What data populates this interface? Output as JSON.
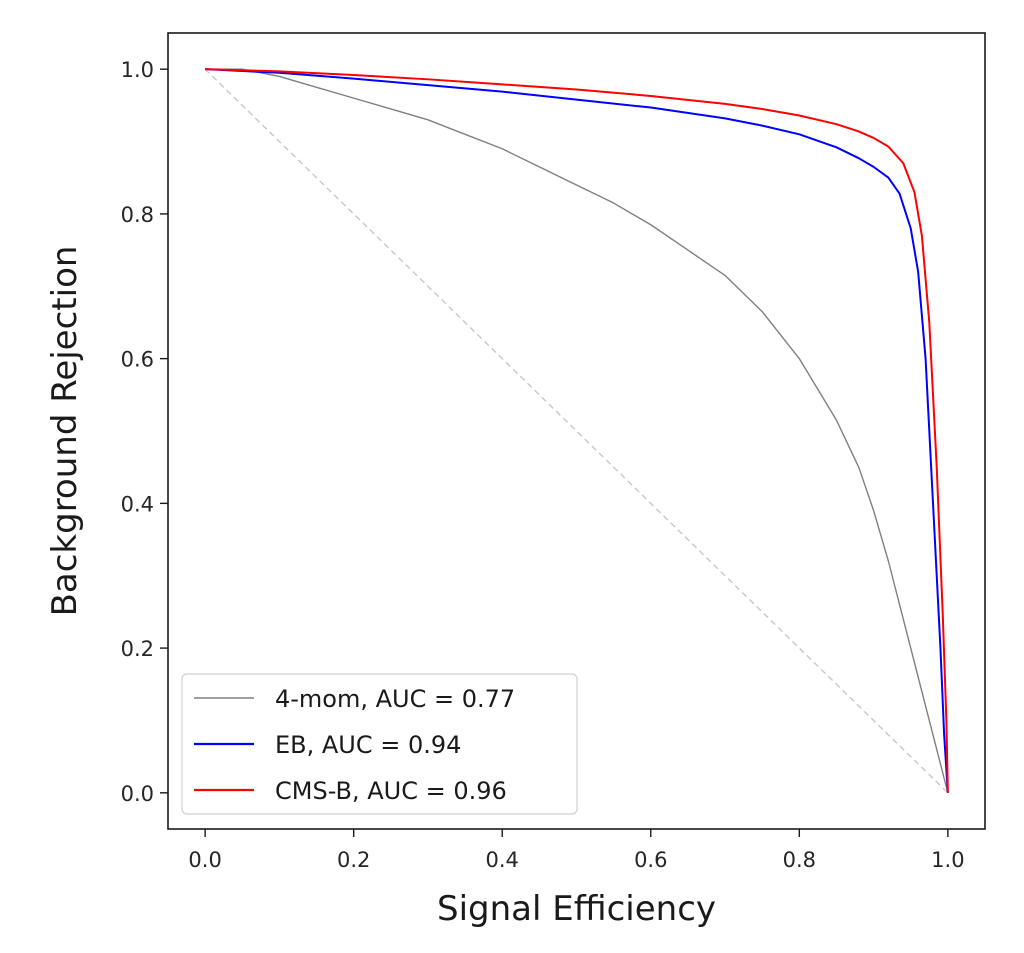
{
  "chart_data": {
    "type": "line",
    "title": "",
    "xlabel": "Signal Efficiency",
    "ylabel": "Background Rejection",
    "xlim": [
      -0.05,
      1.05
    ],
    "ylim": [
      -0.05,
      1.05
    ],
    "xticks": [
      "0.0",
      "0.2",
      "0.4",
      "0.6",
      "0.8",
      "1.0"
    ],
    "yticks": [
      "0.0",
      "0.2",
      "0.4",
      "0.6",
      "0.8",
      "1.0"
    ],
    "grid": false,
    "legend_position": "lower-left",
    "reference_line": {
      "style": "dashed",
      "color": "#c8c8c8",
      "x": [
        0,
        1
      ],
      "y": [
        1,
        0
      ]
    },
    "series": [
      {
        "name": "4-mom, AUC = 0.77",
        "color": "#808080",
        "x": [
          0,
          0.05,
          0.1,
          0.15,
          0.2,
          0.25,
          0.3,
          0.35,
          0.4,
          0.45,
          0.5,
          0.55,
          0.6,
          0.65,
          0.7,
          0.75,
          0.8,
          0.85,
          0.88,
          0.9,
          0.92,
          0.94,
          0.96,
          0.98,
          0.99,
          1.0
        ],
        "y": [
          1.0,
          1.0,
          0.99,
          0.975,
          0.96,
          0.945,
          0.93,
          0.91,
          0.89,
          0.865,
          0.84,
          0.815,
          0.785,
          0.75,
          0.715,
          0.665,
          0.6,
          0.515,
          0.45,
          0.39,
          0.32,
          0.24,
          0.16,
          0.08,
          0.04,
          0.0
        ]
      },
      {
        "name": "EB, AUC = 0.94",
        "color": "#0000ff",
        "x": [
          0,
          0.1,
          0.2,
          0.3,
          0.4,
          0.5,
          0.6,
          0.7,
          0.75,
          0.8,
          0.85,
          0.88,
          0.9,
          0.92,
          0.935,
          0.95,
          0.96,
          0.97,
          0.98,
          0.99,
          0.995,
          1.0
        ],
        "y": [
          1.0,
          0.995,
          0.987,
          0.978,
          0.969,
          0.958,
          0.947,
          0.932,
          0.922,
          0.91,
          0.892,
          0.877,
          0.865,
          0.85,
          0.828,
          0.78,
          0.72,
          0.6,
          0.4,
          0.2,
          0.08,
          0.0
        ]
      },
      {
        "name": "CMS-B, AUC = 0.96",
        "color": "#ff0000",
        "x": [
          0,
          0.1,
          0.2,
          0.3,
          0.4,
          0.5,
          0.6,
          0.7,
          0.75,
          0.8,
          0.85,
          0.88,
          0.9,
          0.92,
          0.94,
          0.955,
          0.965,
          0.975,
          0.985,
          0.993,
          0.998,
          1.0
        ],
        "y": [
          1.0,
          0.997,
          0.992,
          0.986,
          0.979,
          0.972,
          0.963,
          0.952,
          0.945,
          0.936,
          0.924,
          0.914,
          0.905,
          0.893,
          0.87,
          0.83,
          0.77,
          0.65,
          0.45,
          0.25,
          0.1,
          0.0
        ]
      }
    ]
  }
}
